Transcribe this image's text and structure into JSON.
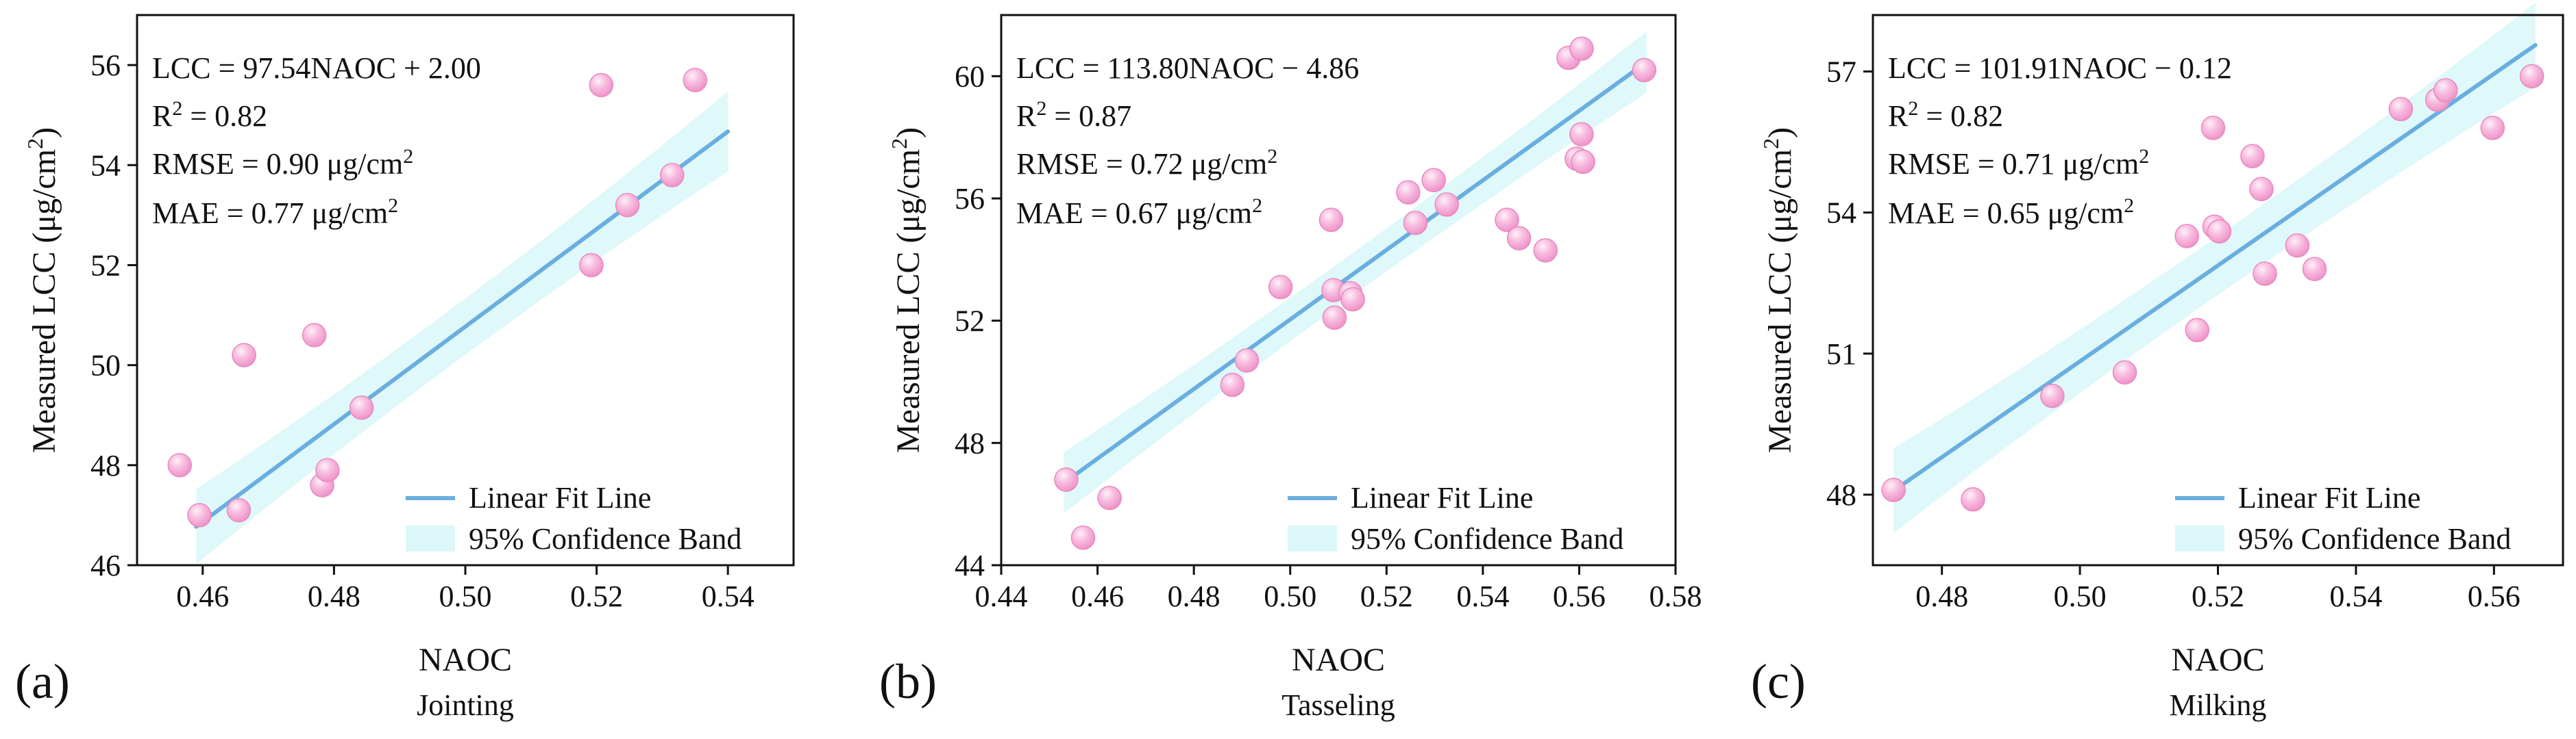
{
  "chart_data": [
    {
      "type": "scatter",
      "panel_label": "(a)",
      "stage": "Jointing",
      "xlabel": "NAOC",
      "ylabel_main": "Measured LCC (",
      "ylabel_unit": "μg/cm",
      "ylabel_sup": "2",
      "ylabel_close": ")",
      "xlim": [
        0.45,
        0.55
      ],
      "ylim": [
        46,
        57
      ],
      "xticks": [
        0.46,
        0.48,
        0.5,
        0.52,
        0.54
      ],
      "xtick_labels": [
        "0.46",
        "0.48",
        "0.50",
        "0.52",
        "0.54"
      ],
      "yticks": [
        46,
        48,
        50,
        52,
        54,
        56
      ],
      "ytick_labels": [
        "46",
        "48",
        "50",
        "52",
        "54",
        "56"
      ],
      "fit": {
        "slope": 97.54,
        "intercept": 2.0,
        "x_range": [
          0.459,
          0.54
        ]
      },
      "band_halfwidth": [
        0.75,
        0.35,
        0.8
      ],
      "annotations": {
        "equation": "LCC = 97.54NAOC + 2.00",
        "r2_text": "R",
        "r2_sup": "2",
        "r2_val": " = 0.82",
        "rmse_text": "RMSE = 0.90  μg/cm",
        "rmse_sup": "2",
        "mae_text": "MAE = 0.77  μg/cm",
        "mae_sup": "2"
      },
      "points": [
        {
          "x": 0.4565,
          "y": 48.0
        },
        {
          "x": 0.4595,
          "y": 47.0
        },
        {
          "x": 0.4655,
          "y": 47.1
        },
        {
          "x": 0.4663,
          "y": 50.2
        },
        {
          "x": 0.477,
          "y": 50.6
        },
        {
          "x": 0.4782,
          "y": 47.6
        },
        {
          "x": 0.479,
          "y": 47.9
        },
        {
          "x": 0.4842,
          "y": 49.15
        },
        {
          "x": 0.5192,
          "y": 52.0
        },
        {
          "x": 0.5207,
          "y": 55.6
        },
        {
          "x": 0.5247,
          "y": 53.2
        },
        {
          "x": 0.5315,
          "y": 53.8
        },
        {
          "x": 0.535,
          "y": 55.7
        }
      ],
      "legend": {
        "fit_label": "Linear Fit Line",
        "band_label": "95% Confidence Band"
      }
    },
    {
      "type": "scatter",
      "panel_label": "(b)",
      "stage": "Tasseling",
      "xlabel": "NAOC",
      "ylabel_main": "Measured LCC (",
      "ylabel_unit": "μg/cm",
      "ylabel_sup": "2",
      "ylabel_close": ")",
      "xlim": [
        0.44,
        0.58
      ],
      "ylim": [
        44,
        62
      ],
      "xticks": [
        0.44,
        0.46,
        0.48,
        0.5,
        0.52,
        0.54,
        0.56,
        0.58
      ],
      "xtick_labels": [
        "0.44",
        "0.46",
        "0.48",
        "0.50",
        "0.52",
        "0.54",
        "0.56",
        "0.58"
      ],
      "yticks": [
        44,
        48,
        52,
        56,
        60
      ],
      "ytick_labels": [
        "44",
        "48",
        "52",
        "56",
        "60"
      ],
      "fit": {
        "slope": 113.8,
        "intercept": -4.86,
        "x_range": [
          0.453,
          0.574
        ]
      },
      "band_halfwidth": [
        1.0,
        0.4,
        1.0
      ],
      "annotations": {
        "equation": "LCC = 113.80NAOC − 4.86",
        "r2_text": "R",
        "r2_sup": "2",
        "r2_val": " = 0.87",
        "rmse_text": "RMSE = 0.72  μg/cm",
        "rmse_sup": "2",
        "mae_text": "MAE = 0.67  μg/cm",
        "mae_sup": "2"
      },
      "points": [
        {
          "x": 0.4535,
          "y": 46.8
        },
        {
          "x": 0.457,
          "y": 44.9
        },
        {
          "x": 0.4625,
          "y": 46.2
        },
        {
          "x": 0.488,
          "y": 49.9
        },
        {
          "x": 0.491,
          "y": 50.7
        },
        {
          "x": 0.498,
          "y": 53.1
        },
        {
          "x": 0.5085,
          "y": 55.3
        },
        {
          "x": 0.509,
          "y": 53.0
        },
        {
          "x": 0.5092,
          "y": 52.1
        },
        {
          "x": 0.5125,
          "y": 52.9
        },
        {
          "x": 0.513,
          "y": 52.7
        },
        {
          "x": 0.5245,
          "y": 56.2
        },
        {
          "x": 0.526,
          "y": 55.2
        },
        {
          "x": 0.5298,
          "y": 56.6
        },
        {
          "x": 0.5325,
          "y": 55.8
        },
        {
          "x": 0.545,
          "y": 55.3
        },
        {
          "x": 0.5475,
          "y": 54.7
        },
        {
          "x": 0.553,
          "y": 54.3
        },
        {
          "x": 0.5578,
          "y": 60.6
        },
        {
          "x": 0.5595,
          "y": 57.3
        },
        {
          "x": 0.5605,
          "y": 60.9
        },
        {
          "x": 0.5605,
          "y": 58.1
        },
        {
          "x": 0.5608,
          "y": 57.2
        },
        {
          "x": 0.5735,
          "y": 60.2
        }
      ],
      "legend": {
        "fit_label": "Linear Fit Line",
        "band_label": "95% Confidence Band"
      }
    },
    {
      "type": "scatter",
      "panel_label": "(c)",
      "stage": "Milking",
      "xlabel": "NAOC",
      "ylabel_main": "Measured LCC (",
      "ylabel_unit": "μg/cm",
      "ylabel_sup": "2",
      "ylabel_close": ")",
      "xlim": [
        0.47,
        0.57
      ],
      "ylim": [
        46.5,
        58.2
      ],
      "xticks": [
        0.48,
        0.5,
        0.52,
        0.54,
        0.56
      ],
      "xtick_labels": [
        "0.48",
        "0.50",
        "0.52",
        "0.54",
        "0.56"
      ],
      "yticks": [
        48,
        51,
        54,
        57
      ],
      "ytick_labels": [
        "48",
        "51",
        "54",
        "57"
      ],
      "fit": {
        "slope": 101.91,
        "intercept": -0.12,
        "x_range": [
          0.473,
          0.566
        ]
      },
      "band_halfwidth": [
        0.9,
        0.35,
        0.9
      ],
      "annotations": {
        "equation": "LCC = 101.91NAOC − 0.12",
        "r2_text": "R",
        "r2_sup": "2",
        "r2_val": " = 0.82",
        "rmse_text": "RMSE = 0.71  μg/cm",
        "rmse_sup": "2",
        "mae_text": "MAE = 0.65  μg/cm",
        "mae_sup": "2"
      },
      "points": [
        {
          "x": 0.473,
          "y": 48.1
        },
        {
          "x": 0.4845,
          "y": 47.9
        },
        {
          "x": 0.496,
          "y": 50.1
        },
        {
          "x": 0.5065,
          "y": 50.6
        },
        {
          "x": 0.5155,
          "y": 53.5
        },
        {
          "x": 0.517,
          "y": 51.5
        },
        {
          "x": 0.5193,
          "y": 55.8
        },
        {
          "x": 0.5195,
          "y": 53.7
        },
        {
          "x": 0.5202,
          "y": 53.6
        },
        {
          "x": 0.525,
          "y": 55.2
        },
        {
          "x": 0.5263,
          "y": 54.5
        },
        {
          "x": 0.5268,
          "y": 52.7
        },
        {
          "x": 0.5315,
          "y": 53.3
        },
        {
          "x": 0.534,
          "y": 52.8
        },
        {
          "x": 0.5465,
          "y": 56.2
        },
        {
          "x": 0.5518,
          "y": 56.4
        },
        {
          "x": 0.553,
          "y": 56.6
        },
        {
          "x": 0.5598,
          "y": 55.8
        },
        {
          "x": 0.5655,
          "y": 56.9
        }
      ],
      "legend": {
        "fit_label": "Linear Fit Line",
        "band_label": "95% Confidence Band"
      }
    }
  ],
  "colors": {
    "fit_line": "#6aaee0",
    "band": "#dcf7f9",
    "point_fill": "#f5a9d2",
    "point_edge": "#e789bf",
    "point_highlight": "#fde9f4"
  }
}
